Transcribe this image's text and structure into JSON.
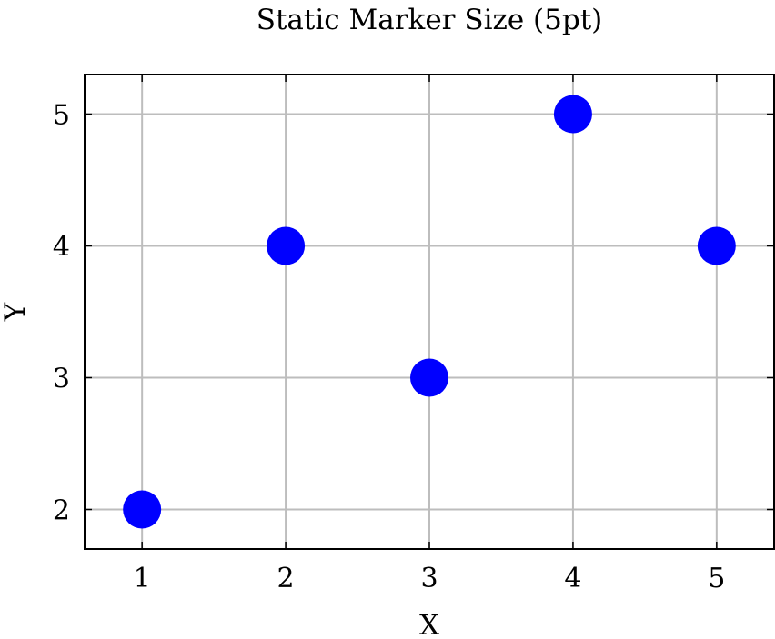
{
  "chart_data": {
    "type": "scatter",
    "title": "Static Marker Size (5pt)",
    "xlabel": "X",
    "ylabel": "Y",
    "xlim": [
      0.6,
      5.4
    ],
    "ylim": [
      1.7,
      5.3
    ],
    "xticks": [
      1,
      2,
      3,
      4,
      5
    ],
    "yticks": [
      2,
      3,
      4,
      5
    ],
    "grid": true,
    "series": [
      {
        "color": "#0000ff",
        "marker": "circle",
        "x": [
          1,
          2,
          3,
          4,
          5
        ],
        "y": [
          2,
          4,
          3,
          5,
          4
        ]
      }
    ]
  }
}
